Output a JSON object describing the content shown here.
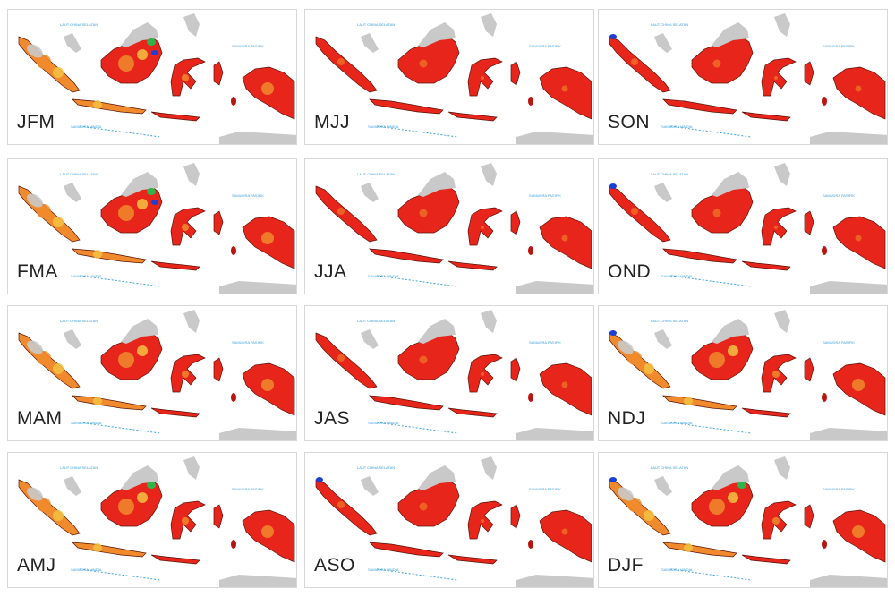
{
  "map": {
    "background": "#ffffff",
    "landmass_color": "#c9c9c9",
    "colors": {
      "red": "#e8251b",
      "dark_red": "#b81410",
      "orange": "#f08a2c",
      "yellow": "#f5c242",
      "grey": "#c9c9c9",
      "green": "#2fb34a",
      "blue": "#1c3fd6",
      "sea_label": "#3aa0dc"
    },
    "sea_labels": [
      "LAUT CHINA SELATAN",
      "SAMUDRA PASIFIK",
      "SAMUDRA HINDIA"
    ],
    "panels": [
      {
        "label": "JFM",
        "fill": "mixed",
        "accents": [
          "green",
          "blue"
        ]
      },
      {
        "label": "MJJ",
        "fill": "red",
        "accents": []
      },
      {
        "label": "SON",
        "fill": "red",
        "accents": [
          "blue"
        ]
      },
      {
        "label": "FMA",
        "fill": "mixed",
        "accents": [
          "green",
          "blue"
        ]
      },
      {
        "label": "JJA",
        "fill": "red",
        "accents": []
      },
      {
        "label": "OND",
        "fill": "red",
        "accents": [
          "blue"
        ]
      },
      {
        "label": "MAM",
        "fill": "mixed",
        "accents": []
      },
      {
        "label": "JAS",
        "fill": "red",
        "accents": []
      },
      {
        "label": "NDJ",
        "fill": "mixed",
        "accents": [
          "blue"
        ]
      },
      {
        "label": "AMJ",
        "fill": "mixed",
        "accents": [
          "green"
        ]
      },
      {
        "label": "ASO",
        "fill": "red",
        "accents": [
          "blue"
        ]
      },
      {
        "label": "DJF",
        "fill": "mixed",
        "accents": [
          "green",
          "blue"
        ]
      }
    ]
  }
}
